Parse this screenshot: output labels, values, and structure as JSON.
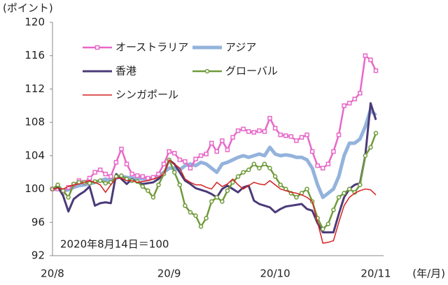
{
  "chart_data": {
    "type": "line",
    "y_label": "(ポイント)",
    "x_label": "(年/月)",
    "annotation": "2020年8月14日＝100",
    "categories": [
      "20/8",
      null,
      null,
      null,
      null,
      null,
      null,
      null,
      null,
      null,
      null,
      null,
      null,
      null,
      null,
      null,
      null,
      null,
      null,
      null,
      null,
      null,
      "20/9",
      null,
      null,
      null,
      null,
      null,
      null,
      null,
      null,
      null,
      null,
      null,
      null,
      null,
      null,
      null,
      null,
      null,
      null,
      null,
      "20/10",
      null,
      null,
      null,
      null,
      null,
      null,
      null,
      null,
      null,
      null,
      null,
      null,
      null,
      null,
      null,
      null,
      null,
      null,
      "20/11"
    ],
    "ylim": [
      92,
      120
    ],
    "yticks": [
      92,
      96,
      100,
      104,
      108,
      112,
      116,
      120
    ],
    "grid": false,
    "legend": "upper-left",
    "series": [
      {
        "name": "オーストラリア",
        "color": "#e868c8",
        "marker": "square",
        "values": [
          100,
          100,
          99.6,
          100.2,
          100.5,
          101,
          100.8,
          101.3,
          102,
          102.3,
          101.8,
          101.5,
          103.2,
          104.8,
          103,
          101.8,
          101.6,
          101.5,
          101.3,
          101.4,
          101.8,
          103,
          104.5,
          104.3,
          103.5,
          103.3,
          102.5,
          103.6,
          104,
          104.2,
          105.5,
          104.5,
          105.8,
          104.7,
          106.2,
          107,
          107.2,
          106.9,
          106.8,
          107,
          106.9,
          108.5,
          107.3,
          106.5,
          106.4,
          106.3,
          105.8,
          106.2,
          106.5,
          104.5,
          102.8,
          102.5,
          103,
          104.5,
          106.5,
          110,
          110.3,
          110.8,
          111.5,
          116,
          115.5,
          114.2
        ]
      },
      {
        "name": "アジア",
        "color": "#93b3dc",
        "marker": "none",
        "values": [
          100,
          100,
          99.8,
          99.9,
          100.2,
          100.4,
          100.5,
          100.6,
          100.8,
          101,
          101.2,
          101,
          101.3,
          101.5,
          101.4,
          101.3,
          101.3,
          101.2,
          101.2,
          101.3,
          101.5,
          102,
          102.5,
          102.5,
          102.3,
          102.8,
          103,
          102.8,
          103.2,
          103,
          102.5,
          102,
          103,
          103.2,
          103.5,
          103.8,
          104,
          103.8,
          104,
          104.2,
          104,
          105,
          104.2,
          104,
          104.1,
          104,
          103.8,
          103.8,
          103.5,
          102.5,
          100.5,
          99,
          99.5,
          100,
          101.5,
          104,
          105.5,
          105.5,
          106,
          107.5,
          109.5,
          108.8
        ]
      },
      {
        "name": "香港",
        "color": "#4b3b78",
        "marker": "none",
        "values": [
          100,
          100.3,
          99.2,
          97.3,
          98.8,
          99.3,
          99.7,
          100.3,
          98,
          98.3,
          98.4,
          98.3,
          101.8,
          101.2,
          100.6,
          101.2,
          100.8,
          100.6,
          100.7,
          100.8,
          101.2,
          101.8,
          103.5,
          103,
          102,
          101,
          100.6,
          100.1,
          99.9,
          99.7,
          99.4,
          99,
          100,
          100.4,
          100,
          99.6,
          100.2,
          100.4,
          98.6,
          98.2,
          98,
          97.8,
          97.2,
          97.6,
          97.9,
          98,
          98.1,
          98.2,
          97.6,
          97.4,
          95.9,
          94.8,
          94.8,
          94.8,
          97,
          99,
          100,
          100.5,
          100.7,
          104,
          110.3,
          108.3
        ]
      },
      {
        "name": "グローバル",
        "color": "#6f9a3a",
        "marker": "circle",
        "values": [
          100,
          100.5,
          99.8,
          99,
          100.6,
          100.8,
          100.8,
          100.7,
          100.9,
          101,
          100.7,
          100.8,
          101.5,
          101.6,
          101.2,
          101,
          100.9,
          100.3,
          99.8,
          99,
          100.5,
          101.8,
          103.5,
          102,
          100.5,
          98,
          97.2,
          96.8,
          95.5,
          96.5,
          98.5,
          99,
          98.5,
          99.8,
          100.8,
          101.5,
          102,
          102.3,
          103,
          102.5,
          103,
          102.5,
          101.5,
          100.5,
          100,
          99.5,
          99,
          99.5,
          100,
          98.5,
          96.5,
          95.2,
          95.8,
          97.5,
          99,
          99.5,
          100,
          99.6,
          100.5,
          104,
          105,
          106.7
        ]
      },
      {
        "name": "シンガポール",
        "color": "#d42020",
        "marker": "none",
        "values": [
          100,
          100.1,
          100,
          100.3,
          100.5,
          100.6,
          100.8,
          101,
          100.8,
          100.5,
          99.6,
          100.5,
          101.3,
          101.3,
          101,
          101,
          100.8,
          100.9,
          101,
          101.2,
          101.4,
          101.8,
          103.5,
          103,
          102.5,
          101.2,
          100.8,
          100.5,
          100.5,
          100.2,
          100,
          100.8,
          100.3,
          100.6,
          101.2,
          100.5,
          100,
          100.4,
          100.8,
          100.6,
          100.5,
          101,
          100.5,
          100,
          99.8,
          99.6,
          99.5,
          99.3,
          99,
          98.5,
          96,
          93.5,
          93.6,
          93.8,
          96,
          98,
          99,
          99.5,
          99.8,
          100,
          99.9,
          99.3
        ]
      }
    ]
  }
}
